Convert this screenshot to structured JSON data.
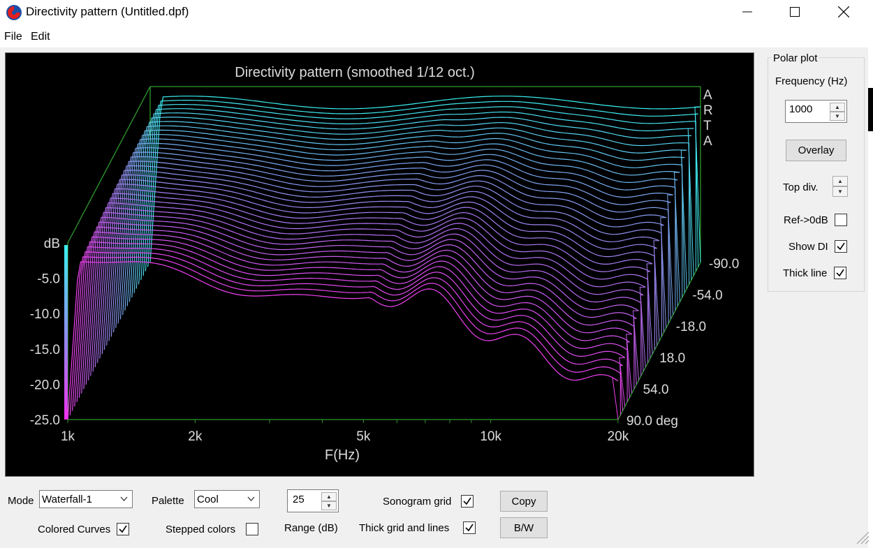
{
  "window": {
    "title": "Directivity pattern (Untitled.dpf)",
    "icon": "arta-app-icon"
  },
  "menu": {
    "items": [
      "File",
      "Edit"
    ]
  },
  "chart_data": {
    "type": "area",
    "style": "waterfall",
    "title": "Directivity pattern (smoothed 1/12 oct.)",
    "brand": [
      "A",
      "R",
      "T",
      "A"
    ],
    "xlabel": "F(Hz)",
    "x_scale": "log",
    "xlim": [
      1000,
      20000
    ],
    "x_ticks": [
      "1k",
      "2k",
      "5k",
      "10k",
      "20k"
    ],
    "ylabel": "dB",
    "ylim": [
      -25,
      0
    ],
    "y_ticks": [
      "dB",
      "-5.0",
      "-10.0",
      "-15.0",
      "-20.0",
      "-25.0"
    ],
    "z_ticks": [
      "-90.0",
      "-54.0",
      "-18.0",
      "18.0",
      "54.0",
      "90.0 deg"
    ],
    "z_unit": "deg",
    "zlim": [
      -90,
      90
    ],
    "palette": [
      "#3af0f0",
      "#7aa8f0",
      "#b070f0",
      "#f040f0"
    ],
    "grid": true,
    "series_count": 37
  },
  "polar": {
    "group_title": "Polar plot",
    "freq_label": "Frequency (Hz)",
    "freq_value": "1000",
    "overlay_label": "Overlay",
    "top_div_label": "Top div.",
    "ref_label": "Ref->0dB",
    "ref_checked": false,
    "show_di_label": "Show DI",
    "show_di_checked": true,
    "thick_line_label": "Thick line",
    "thick_line_checked": true
  },
  "bottom": {
    "mode_label": "Mode",
    "mode_value": "Waterfall-1",
    "palette_label": "Palette",
    "palette_value": "Cool",
    "range_value": "25",
    "range_label": "Range (dB)",
    "sonogram_grid_label": "Sonogram grid",
    "sonogram_grid_checked": true,
    "copy_label": "Copy",
    "colored_curves_label": "Colored Curves",
    "colored_curves_checked": true,
    "stepped_colors_label": "Stepped colors",
    "stepped_colors_checked": false,
    "thick_grid_label": "Thick grid and  lines",
    "thick_grid_checked": true,
    "bw_label": "B/W"
  }
}
